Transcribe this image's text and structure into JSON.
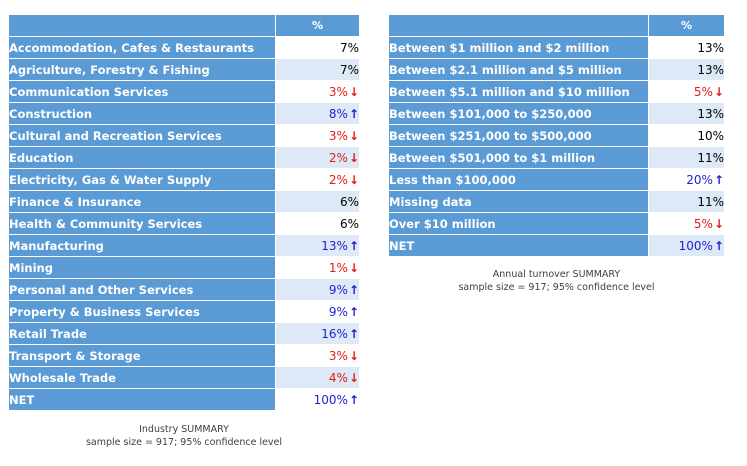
{
  "chart_data": [
    {
      "type": "table",
      "column_header": "%",
      "rows": [
        {
          "label": "Accommodation, Cafes & Restaurants",
          "value": "7%",
          "trend": ""
        },
        {
          "label": "Agriculture, Forestry & Fishing",
          "value": "7%",
          "trend": ""
        },
        {
          "label": "Communication Services",
          "value": "3%",
          "trend": "down"
        },
        {
          "label": "Construction",
          "value": "8%",
          "trend": "up"
        },
        {
          "label": "Cultural and Recreation Services",
          "value": "3%",
          "trend": "down"
        },
        {
          "label": "Education",
          "value": "2%",
          "trend": "down"
        },
        {
          "label": "Electricity, Gas & Water Supply",
          "value": "2%",
          "trend": "down"
        },
        {
          "label": "Finance & Insurance",
          "value": "6%",
          "trend": ""
        },
        {
          "label": "Health & Community Services",
          "value": "6%",
          "trend": ""
        },
        {
          "label": "Manufacturing",
          "value": "13%",
          "trend": "up"
        },
        {
          "label": "Mining",
          "value": "1%",
          "trend": "down"
        },
        {
          "label": "Personal and Other Services",
          "value": "9%",
          "trend": "up"
        },
        {
          "label": "Property & Business Services",
          "value": "9%",
          "trend": "up"
        },
        {
          "label": "Retail Trade",
          "value": "16%",
          "trend": "up"
        },
        {
          "label": "Transport & Storage",
          "value": "3%",
          "trend": "down"
        },
        {
          "label": "Wholesale Trade",
          "value": "4%",
          "trend": "down"
        },
        {
          "label": "NET",
          "value": "100%",
          "trend": "up"
        }
      ],
      "caption_title": "Industry SUMMARY",
      "caption_note": "sample size = 917; 95% confidence level"
    },
    {
      "type": "table",
      "column_header": "%",
      "rows": [
        {
          "label": "Between $1 million and $2 million",
          "value": "13%",
          "trend": ""
        },
        {
          "label": "Between $2.1 million and $5 million",
          "value": "13%",
          "trend": ""
        },
        {
          "label": "Between $5.1 million and $10 million",
          "value": "5%",
          "trend": "down"
        },
        {
          "label": "Between $101,000 to $250,000",
          "value": "13%",
          "trend": ""
        },
        {
          "label": "Between $251,000 to $500,000",
          "value": "10%",
          "trend": ""
        },
        {
          "label": "Between $501,000 to $1 million",
          "value": "11%",
          "trend": ""
        },
        {
          "label": "Less than $100,000",
          "value": "20%",
          "trend": "up"
        },
        {
          "label": "Missing data",
          "value": "11%",
          "trend": ""
        },
        {
          "label": "Over $10 million",
          "value": "5%",
          "trend": "down"
        },
        {
          "label": "NET",
          "value": "100%",
          "trend": "up"
        }
      ],
      "caption_title": "Annual turnover SUMMARY",
      "caption_note": "sample size = 917; 95% confidence level"
    }
  ],
  "colors": {
    "header_blue": "#5b9bd5",
    "up_blue": "#1f1fd0",
    "down_red": "#e01b1b",
    "row_tint": "#dde9f6"
  },
  "icons": {
    "up": "arrow-up-icon",
    "down": "arrow-down-icon"
  }
}
